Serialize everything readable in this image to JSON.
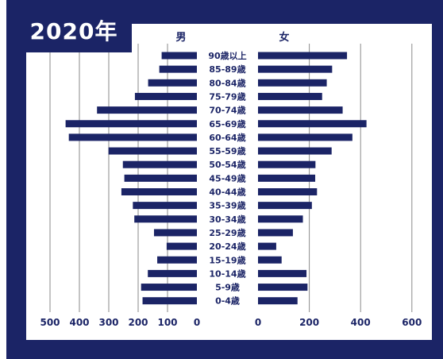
{
  "title_year": "2020年",
  "colors": {
    "frame": "#1b2466",
    "bar": "#1b2466",
    "grid": "#8a8a8a"
  },
  "chart_data": {
    "type": "bar",
    "orientation": "horizontal-pyramid",
    "age_groups": [
      "90歳以上",
      "85-89歳",
      "80-84歳",
      "75-79歳",
      "70-74歳",
      "65-69歳",
      "60-64歳",
      "55-59歳",
      "50-54歳",
      "45-49歳",
      "40-44歳",
      "35-39歳",
      "30-34歳",
      "25-29歳",
      "20-24歳",
      "15-19歳",
      "10-14歳",
      "5-9歳",
      "0-4歳"
    ],
    "series": [
      {
        "name": "男",
        "values": [
          120,
          128,
          166,
          211,
          340,
          447,
          436,
          301,
          252,
          247,
          257,
          218,
          213,
          146,
          103,
          135,
          167,
          190,
          185
        ]
      },
      {
        "name": "女",
        "values": [
          347,
          289,
          268,
          250,
          330,
          423,
          368,
          287,
          224,
          223,
          230,
          210,
          175,
          136,
          71,
          92,
          189,
          193,
          154
        ]
      }
    ],
    "left_axis": {
      "ticks": [
        "500",
        "400",
        "300",
        "200",
        "100",
        "0"
      ],
      "range": [
        500,
        0
      ]
    },
    "right_axis": {
      "ticks": [
        "0",
        "200",
        "400",
        "600"
      ],
      "range": [
        0,
        600
      ]
    },
    "grid": true
  }
}
